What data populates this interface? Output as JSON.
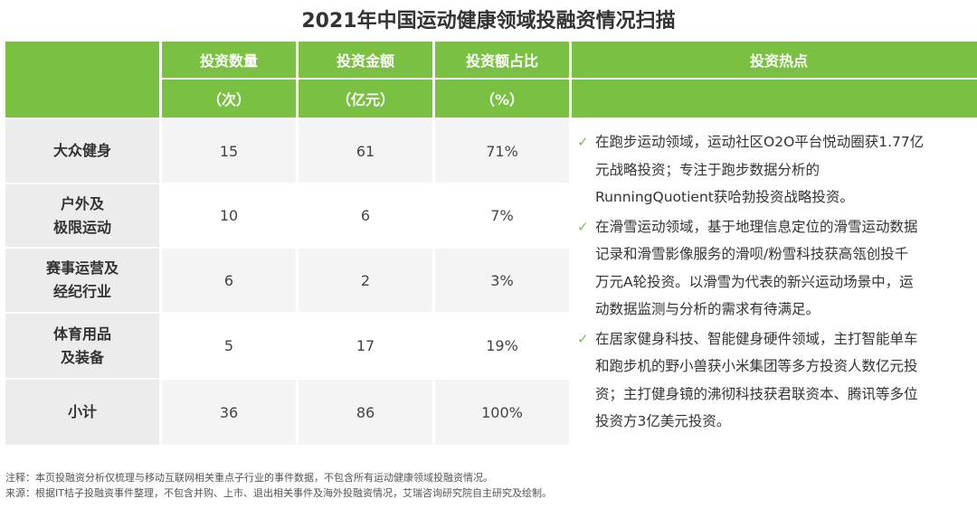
{
  "title": "2021年中国运动健康领域投融资情况扫描",
  "header": {
    "cols": [
      "投资数量",
      "投资金额",
      "投资额占比",
      "投资热点"
    ],
    "units": [
      "（次）",
      "（亿元）",
      "（%）"
    ]
  },
  "rows": [
    {
      "name": [
        "大众健身"
      ],
      "count": "15",
      "amount": "61",
      "share": "71%"
    },
    {
      "name": [
        "户外及",
        "极限运动"
      ],
      "count": "10",
      "amount": "6",
      "share": "7%"
    },
    {
      "name": [
        "赛事运营及",
        "经纪行业"
      ],
      "count": "6",
      "amount": "2",
      "share": "3%"
    },
    {
      "name": [
        "体育用品",
        "及装备"
      ],
      "count": "5",
      "amount": "17",
      "share": "19%"
    },
    {
      "name": [
        "小计"
      ],
      "count": "36",
      "amount": "86",
      "share": "100%"
    }
  ],
  "hotspots": {
    "check_icon": "✓",
    "items": [
      [
        "在跑步运动领域，运动社区O2O平台悦动圈获1.77亿",
        "元战略投资；专注于跑步数据分析的",
        "RunningQuotient获哈勃投资战略投资。"
      ],
      [
        "在滑雪运动领域，基于地理信息定位的滑雪运动数据",
        "记录和滑雪影像服务的滑呗/粉雪科技获高瓴创投千",
        "万元A轮投资。以滑雪为代表的新兴运动场景中，运",
        "动数据监测与分析的需求有待满足。"
      ],
      [
        "在居家健身科技、智能健身硬件领域，主打智能单车",
        "和跑步机的野小兽获小米集团等多方投资人数亿元投",
        "资；主打健身镜的沸彻科技获君联资本、腾讯等多位",
        "投资方3亿美元投资。"
      ]
    ]
  },
  "notes": [
    "注释：本页投融资分析仅梳理与移动互联网相关重点子行业的事件数据，不包含所有运动健康领域投融资情况。",
    "来源：根据IT桔子投融资事件整理，不包含并购、上市、退出相关事件及海外投融资情况，艾瑞咨询研究院自主研究及绘制。"
  ],
  "colors": {
    "accent_green": "#7ac143",
    "row_band": "#f4f4f4",
    "row_header": "#ececec"
  }
}
